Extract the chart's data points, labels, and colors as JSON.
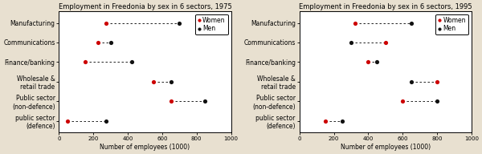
{
  "charts": [
    {
      "title": "Employment in Freedonia by sex in 6 sectors, 1975",
      "sectors": [
        "Manufacturing",
        "Communications",
        "Finance/banking",
        "Wholesale &\nretail trade",
        "Public sector\n(non-defence)",
        "public sector\n(defence)"
      ],
      "women": [
        275,
        225,
        150,
        550,
        650,
        50
      ],
      "men": [
        700,
        300,
        425,
        650,
        850,
        275
      ]
    },
    {
      "title": "Employment in Freedonia by sex in 6 sectors, 1995",
      "sectors": [
        "Manufacturing",
        "Communications",
        "Finance/banking",
        "Wholesale &\nretail trade",
        "Public sector\n(non-defence)",
        "public sector\n(defence)"
      ],
      "women": [
        325,
        500,
        400,
        800,
        600,
        150
      ],
      "men": [
        650,
        300,
        450,
        650,
        800,
        250
      ]
    }
  ],
  "xlabel": "Number of employees (1000)",
  "xlim": [
    0,
    1000
  ],
  "xticks": [
    0,
    200,
    400,
    600,
    800,
    1000
  ],
  "women_color": "#cc0000",
  "men_color": "#111111",
  "outer_bg": "#e8e0d0",
  "inner_bg": "#ffffff",
  "title_fontsize": 6.0,
  "label_fontsize": 5.5,
  "tick_fontsize": 5.0,
  "legend_fontsize": 5.5
}
